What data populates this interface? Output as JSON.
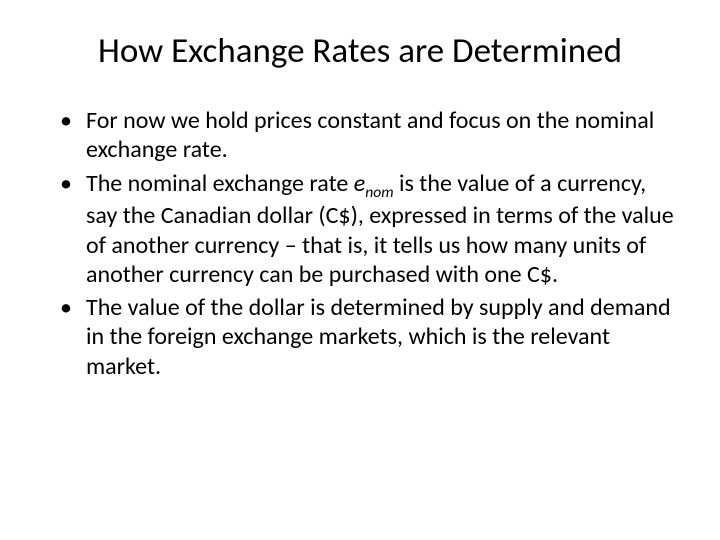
{
  "title": "How Exchange Rates are Determined",
  "bullets": [
    {
      "text": "For now we hold prices constant and focus on the nominal exchange rate."
    },
    {
      "prefix": "The nominal exchange rate ",
      "var": "e",
      "sub": "nom",
      "suffix": " is the value of a currency, say the Canadian dollar (C$), expressed in terms of the value of another currency – that is, it tells us how many units of another currency can be purchased with one C$."
    },
    {
      "text": "The value of the dollar is determined by supply and demand in the foreign exchange markets, which is the relevant market."
    }
  ],
  "colors": {
    "background": "#ffffff",
    "text": "#000000"
  },
  "typography": {
    "title_fontsize": 35,
    "body_fontsize": 24,
    "font_family": "Calibri"
  }
}
